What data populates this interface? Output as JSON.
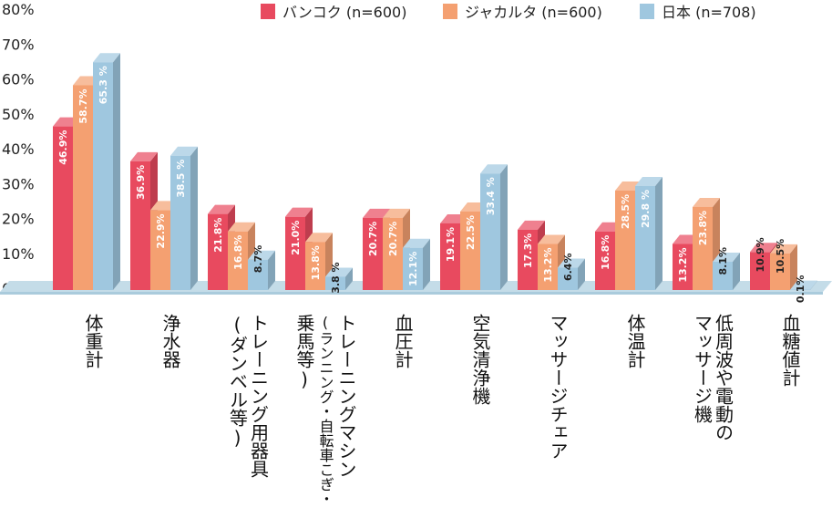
{
  "chart_data": {
    "type": "bar",
    "ylim": [
      0,
      80
    ],
    "yticks": [
      "0%",
      "10%",
      "20%",
      "30%",
      "40%",
      "50%",
      "60%",
      "70%",
      "80%"
    ],
    "grid": false,
    "legend_position": "top-right",
    "series": [
      {
        "name": "バンコク (n=600)",
        "color": "#e84a5f",
        "values": [
          46.9,
          36.9,
          21.8,
          21.0,
          20.7,
          19.1,
          17.3,
          16.8,
          13.2,
          10.9
        ],
        "labels": [
          "46.9%",
          "36.9%",
          "21.8%",
          "21.0%",
          "20.7%",
          "19.1%",
          "17.3%",
          "16.8%",
          "13.2%",
          "10.9%"
        ]
      },
      {
        "name": "ジャカルタ (n=600)",
        "color": "#f4a071",
        "values": [
          58.7,
          22.9,
          16.8,
          13.8,
          20.7,
          22.5,
          13.2,
          28.5,
          23.8,
          10.5
        ],
        "labels": [
          "58.7%",
          "22.9%",
          "16.8%",
          "13.8%",
          "20.7%",
          "22.5%",
          "13.2%",
          "28.5%",
          "23.8%",
          "10.5%"
        ]
      },
      {
        "name": "日本 (n=708)",
        "color": "#9fc7df",
        "values": [
          65.3,
          38.5,
          8.7,
          3.8,
          12.1,
          33.4,
          6.4,
          29.8,
          8.1,
          0.1
        ],
        "labels": [
          "65.3 %",
          "38.5 %",
          "8.7%",
          "3.8 %",
          "12.1%",
          "33.4 %",
          "6.4%",
          "29.8 %",
          "8.1%",
          "0.1%"
        ]
      }
    ],
    "categories": [
      {
        "lines": [
          "体重計"
        ]
      },
      {
        "lines": [
          "浄水器"
        ]
      },
      {
        "lines": [
          "トレーニング用器具",
          "(ダンベル等)"
        ]
      },
      {
        "lines": [
          "トレーニングマシン",
          "(ランニング・自転車こぎ・",
          "乗馬等)"
        ]
      },
      {
        "lines": [
          "血圧計"
        ]
      },
      {
        "lines": [
          "空気清浄機"
        ]
      },
      {
        "lines": [
          "マッサージチェア"
        ]
      },
      {
        "lines": [
          "体温計"
        ]
      },
      {
        "lines": [
          "低周波や電動の",
          "マッサージ機"
        ]
      },
      {
        "lines": [
          "血糖値計"
        ]
      }
    ]
  }
}
